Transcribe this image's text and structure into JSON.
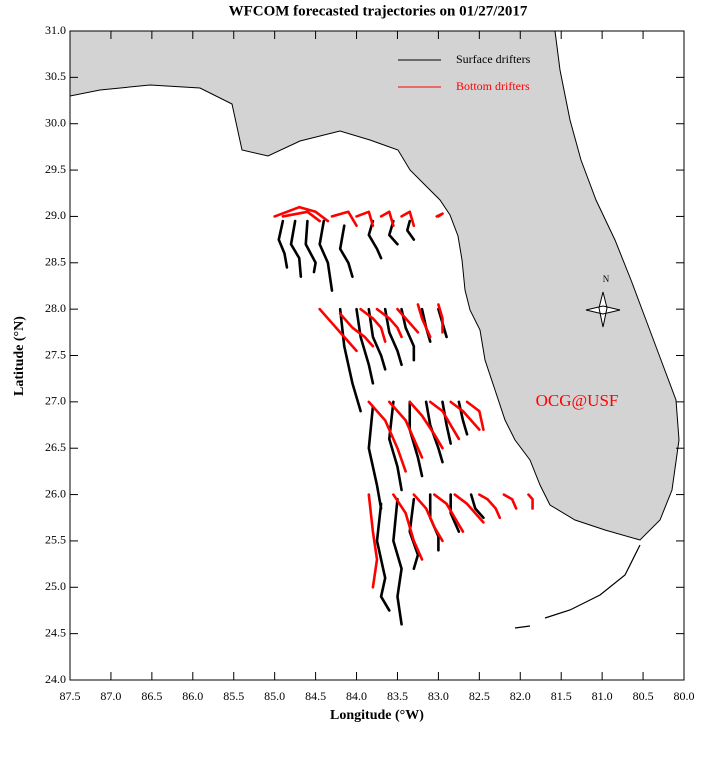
{
  "chart_data": {
    "type": "line",
    "title": "WFCOM forecasted trajectories on 01/27/2017",
    "x_label": "Longitude (°W)",
    "y_label": "Latitude (°N)",
    "xlim": [
      87.5,
      80
    ],
    "ylim": [
      24,
      31
    ],
    "xticks": [
      87.5,
      {
        "value": 87,
        "label": "87.0"
      },
      86.5,
      {
        "value": 86,
        "label": "86.0"
      },
      85.5,
      {
        "value": 85,
        "label": "85.0"
      },
      84.5,
      {
        "value": 84,
        "label": "84.0"
      },
      83.5,
      {
        "value": 83,
        "label": "83.0"
      },
      82.5,
      {
        "value": 82,
        "label": "82.0"
      },
      81.5,
      {
        "value": 81,
        "label": "81.0"
      },
      80.5,
      {
        "value": 80,
        "label": "80.0"
      }
    ],
    "yticks": [
      {
        "value": 24,
        "label": "24.0"
      },
      24.5,
      {
        "value": 25,
        "label": "25.0"
      },
      25.5,
      {
        "value": 26,
        "label": "26.0"
      },
      26.5,
      {
        "value": 27,
        "label": "27.0"
      },
      27.5,
      {
        "value": 28,
        "label": "28.0"
      },
      28.5,
      {
        "value": 29,
        "label": "29.0"
      },
      29.5,
      {
        "value": 30,
        "label": "30.0"
      },
      30.5,
      {
        "value": 31,
        "label": "31.0"
      }
    ],
    "legend": "upper right",
    "annotations": [
      "OCG@USF",
      "N"
    ],
    "series": [
      {
        "name": "Surface drifters",
        "color": "#000000",
        "tracks": [
          {
            "x": [
              84.9,
              84.95,
              84.88,
              84.85
            ],
            "y": [
              28.95,
              28.75,
              28.6,
              28.45
            ]
          },
          {
            "x": [
              84.75,
              84.8,
              84.7,
              84.68
            ],
            "y": [
              28.95,
              28.7,
              28.55,
              28.35
            ]
          },
          {
            "x": [
              84.6,
              84.62,
              84.5,
              84.52
            ],
            "y": [
              28.95,
              28.7,
              28.5,
              28.4
            ]
          },
          {
            "x": [
              84.4,
              84.45,
              84.35,
              84.3
            ],
            "y": [
              28.95,
              28.7,
              28.5,
              28.2
            ]
          },
          {
            "x": [
              84.15,
              84.2,
              84.1,
              84.05
            ],
            "y": [
              28.9,
              28.65,
              28.5,
              28.35
            ]
          },
          {
            "x": [
              83.8,
              83.85,
              83.75,
              83.7
            ],
            "y": [
              28.95,
              28.8,
              28.65,
              28.55
            ]
          },
          {
            "x": [
              83.55,
              83.6,
              83.5
            ],
            "y": [
              28.95,
              28.8,
              28.7
            ]
          },
          {
            "x": [
              83.35,
              83.38,
              83.3
            ],
            "y": [
              28.95,
              28.85,
              28.75
            ]
          },
          {
            "x": [
              84.2,
              84.15,
              84.05,
              83.95
            ],
            "y": [
              28,
              27.6,
              27.2,
              26.9
            ]
          },
          {
            "x": [
              84,
              83.95,
              83.85,
              83.8
            ],
            "y": [
              28,
              27.7,
              27.4,
              27.2
            ]
          },
          {
            "x": [
              83.85,
              83.8,
              83.7,
              83.65
            ],
            "y": [
              28,
              27.7,
              27.5,
              27.35
            ]
          },
          {
            "x": [
              83.65,
              83.6,
              83.5,
              83.45
            ],
            "y": [
              28,
              27.75,
              27.55,
              27.4
            ]
          },
          {
            "x": [
              83.45,
              83.4,
              83.3,
              83.3
            ],
            "y": [
              28,
              27.8,
              27.6,
              27.45
            ]
          },
          {
            "x": [
              83.2,
              83.15,
              83.1
            ],
            "y": [
              28,
              27.8,
              27.65
            ]
          },
          {
            "x": [
              83,
              82.95,
              82.9
            ],
            "y": [
              28,
              27.85,
              27.7
            ]
          },
          {
            "x": [
              83.8,
              83.85,
              83.75,
              83.7
            ],
            "y": [
              26.95,
              26.5,
              26.1,
              25.85
            ]
          },
          {
            "x": [
              83.55,
              83.6,
              83.5,
              83.45
            ],
            "y": [
              27,
              26.6,
              26.3,
              26.05
            ]
          },
          {
            "x": [
              83.35,
              83.35,
              83.25,
              83.2
            ],
            "y": [
              27,
              26.7,
              26.4,
              26.2
            ]
          },
          {
            "x": [
              83.15,
              83.1,
              83,
              82.95
            ],
            "y": [
              27,
              26.75,
              26.5,
              26.35
            ]
          },
          {
            "x": [
              82.95,
              82.9,
              82.85
            ],
            "y": [
              27,
              26.75,
              26.55
            ]
          },
          {
            "x": [
              82.75,
              82.7,
              82.65
            ],
            "y": [
              27,
              26.8,
              26.65
            ]
          },
          {
            "x": [
              83.7,
              83.75,
              83.65,
              83.7,
              83.6
            ],
            "y": [
              25.9,
              25.5,
              25.1,
              24.9,
              24.75
            ]
          },
          {
            "x": [
              83.5,
              83.55,
              83.45,
              83.5,
              83.45
            ],
            "y": [
              25.95,
              25.5,
              25.2,
              24.9,
              24.6
            ]
          },
          {
            "x": [
              83.3,
              83.35,
              83.25,
              83.3
            ],
            "y": [
              25.95,
              25.6,
              25.35,
              25.2
            ]
          },
          {
            "x": [
              83.1,
              83.1,
              83,
              83
            ],
            "y": [
              26,
              25.75,
              25.55,
              25.4
            ]
          },
          {
            "x": [
              82.85,
              82.85,
              82.75
            ],
            "y": [
              26,
              25.8,
              25.6
            ]
          },
          {
            "x": [
              82.6,
              82.55,
              82.45
            ],
            "y": [
              26,
              25.85,
              25.75
            ]
          }
        ]
      },
      {
        "name": "Bottom drifters",
        "color": "#ff0000",
        "tracks": [
          {
            "x": [
              85,
              84.7,
              84.5,
              84.35
            ],
            "y": [
              29,
              29.1,
              29.05,
              28.95
            ]
          },
          {
            "x": [
              84.9,
              84.6,
              84.45
            ],
            "y": [
              29,
              29.05,
              28.95
            ]
          },
          {
            "x": [
              84.3,
              84.1,
              84
            ],
            "y": [
              29,
              29.05,
              28.9
            ]
          },
          {
            "x": [
              84,
              83.85,
              83.8
            ],
            "y": [
              29,
              29.05,
              28.9
            ]
          },
          {
            "x": [
              83.7,
              83.6,
              83.55
            ],
            "y": [
              29,
              29.05,
              28.9
            ]
          },
          {
            "x": [
              83.45,
              83.35,
              83.3
            ],
            "y": [
              29,
              29.05,
              28.9
            ]
          },
          {
            "x": [
              83,
              82.95,
              83.02
            ],
            "y": [
              29,
              29.03,
              29
            ]
          },
          {
            "x": [
              84.45,
              84.3,
              84.15,
              84
            ],
            "y": [
              28,
              27.85,
              27.7,
              27.55
            ]
          },
          {
            "x": [
              84.2,
              84.05,
              83.9,
              83.8
            ],
            "y": [
              27.95,
              27.8,
              27.7,
              27.6
            ]
          },
          {
            "x": [
              83.95,
              83.8,
              83.7,
              83.65
            ],
            "y": [
              28,
              27.9,
              27.8,
              27.65
            ]
          },
          {
            "x": [
              83.75,
              83.6,
              83.5,
              83.45
            ],
            "y": [
              28,
              27.9,
              27.8,
              27.7
            ]
          },
          {
            "x": [
              83.5,
              83.4,
              83.3,
              83.25
            ],
            "y": [
              28,
              27.9,
              27.8,
              27.75
            ]
          },
          {
            "x": [
              83.25,
              83.2,
              83.15,
              83.1
            ],
            "y": [
              28.05,
              27.9,
              27.8,
              27.7
            ]
          },
          {
            "x": [
              83,
              82.95,
              82.95
            ],
            "y": [
              28.05,
              27.9,
              27.75
            ]
          },
          {
            "x": [
              83.85,
              83.65,
              83.5,
              83.4
            ],
            "y": [
              27,
              26.8,
              26.5,
              26.25
            ]
          },
          {
            "x": [
              83.6,
              83.4,
              83.3,
              83.2
            ],
            "y": [
              27,
              26.8,
              26.6,
              26.4
            ]
          },
          {
            "x": [
              83.35,
              83.2,
              83.05,
              82.95
            ],
            "y": [
              27,
              26.85,
              26.65,
              26.5
            ]
          },
          {
            "x": [
              83.1,
              82.95,
              82.85,
              82.75
            ],
            "y": [
              27,
              26.9,
              26.75,
              26.6
            ]
          },
          {
            "x": [
              82.85,
              82.7,
              82.6,
              82.5
            ],
            "y": [
              27,
              26.9,
              26.8,
              26.7
            ]
          },
          {
            "x": [
              82.65,
              82.5,
              82.45
            ],
            "y": [
              27,
              26.9,
              26.7
            ]
          },
          {
            "x": [
              83.85,
              83.8,
              83.75,
              83.8
            ],
            "y": [
              26,
              25.6,
              25.3,
              25
            ]
          },
          {
            "x": [
              83.55,
              83.4,
              83.3,
              83.2
            ],
            "y": [
              26,
              25.8,
              25.5,
              25.3
            ]
          },
          {
            "x": [
              83.3,
              83.15,
              83.05,
              82.95
            ],
            "y": [
              26,
              25.85,
              25.65,
              25.5
            ]
          },
          {
            "x": [
              83.05,
              82.9,
              82.8,
              82.7
            ],
            "y": [
              26,
              25.9,
              25.75,
              25.6
            ]
          },
          {
            "x": [
              82.8,
              82.65,
              82.55,
              82.45
            ],
            "y": [
              26,
              25.9,
              25.8,
              25.7
            ]
          },
          {
            "x": [
              82.5,
              82.4,
              82.3,
              82.25
            ],
            "y": [
              26,
              25.95,
              25.85,
              25.75
            ]
          },
          {
            "x": [
              82.2,
              82.1,
              82.05
            ],
            "y": [
              26,
              25.95,
              25.85
            ]
          },
          {
            "x": [
              81.9,
              81.85,
              81.85
            ],
            "y": [
              26,
              25.95,
              25.85
            ]
          }
        ]
      }
    ]
  }
}
